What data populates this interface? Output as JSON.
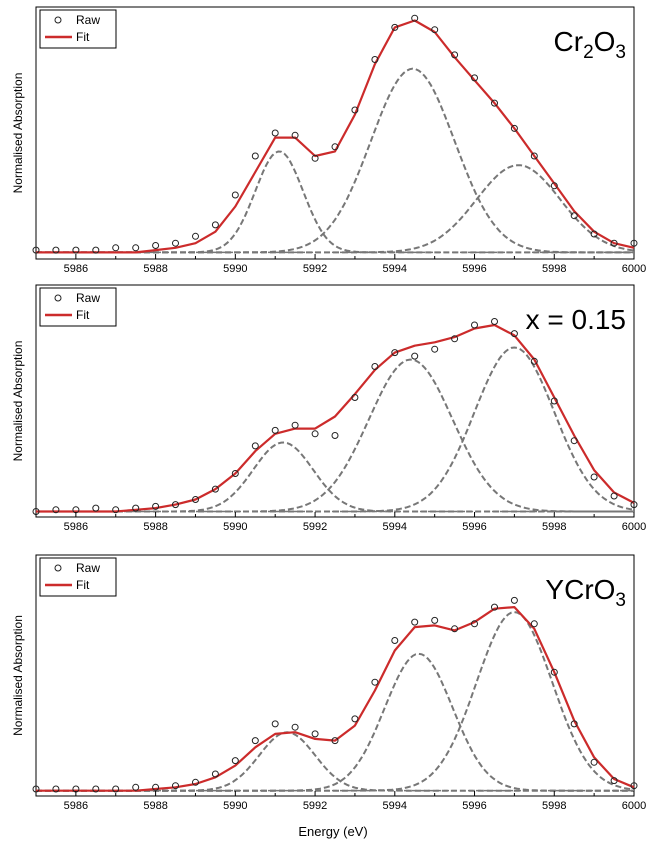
{
  "figure": {
    "xlabel": "Energy (eV)",
    "ylabel": "Normalised Absorption"
  },
  "colors": {
    "fit": "#cc2b2b",
    "raw": "#222222",
    "component": "#777777",
    "baseline": "#777777",
    "axis": "#000000"
  },
  "legend": {
    "raw": "Raw",
    "fit": "Fit"
  },
  "chart_data": [
    {
      "type": "line",
      "title": "Cr2O3",
      "title_main": "Cr",
      "title_sub1": "2",
      "title_mid": "O",
      "title_sub2": "3",
      "xlabel": "",
      "ylabel": "Normalised Absorption",
      "xlim": [
        5985,
        6000
      ],
      "ylim": [
        -0.02,
        1.06
      ],
      "xticks": [
        5986,
        5988,
        5990,
        5992,
        5994,
        5996,
        5998,
        6000
      ],
      "grid": false,
      "legend_position": "top-left",
      "components": [
        {
          "center": 5991.1,
          "amplitude": 0.44,
          "sigma": 0.6
        },
        {
          "center": 5994.45,
          "amplitude": 0.8,
          "sigma": 1.05
        },
        {
          "center": 5997.1,
          "amplitude": 0.38,
          "sigma": 1.05
        }
      ],
      "series": [
        {
          "name": "Raw",
          "x": [
            5985.0,
            5985.5,
            5986.0,
            5986.5,
            5987.0,
            5987.5,
            5988.0,
            5988.5,
            5989.0,
            5989.5,
            5990.0,
            5990.5,
            5991.0,
            5991.5,
            5992.0,
            5992.5,
            5993.0,
            5993.5,
            5994.0,
            5994.5,
            5995.0,
            5995.5,
            5996.0,
            5996.5,
            5997.0,
            5997.5,
            5998.0,
            5998.5,
            5999.0,
            5999.5,
            6000.0
          ],
          "y": [
            0.01,
            0.01,
            0.01,
            0.01,
            0.02,
            0.02,
            0.03,
            0.04,
            0.07,
            0.12,
            0.25,
            0.42,
            0.52,
            0.51,
            0.41,
            0.46,
            0.62,
            0.84,
            0.98,
            1.02,
            0.97,
            0.86,
            0.76,
            0.65,
            0.54,
            0.42,
            0.29,
            0.16,
            0.08,
            0.04,
            0.04
          ]
        },
        {
          "name": "Fit",
          "x": [
            5985.0,
            5985.5,
            5986.0,
            5986.5,
            5987.0,
            5987.5,
            5988.0,
            5988.5,
            5989.0,
            5989.5,
            5990.0,
            5990.5,
            5991.0,
            5991.5,
            5992.0,
            5992.5,
            5993.0,
            5993.5,
            5994.0,
            5994.5,
            5995.0,
            5995.5,
            5996.0,
            5996.5,
            5997.0,
            5997.5,
            5998.0,
            5998.5,
            5999.0,
            5999.5,
            6000.0
          ],
          "y": [
            0.0,
            0.0,
            0.0,
            0.0,
            0.0,
            0.0,
            0.01,
            0.02,
            0.04,
            0.09,
            0.2,
            0.35,
            0.5,
            0.5,
            0.42,
            0.44,
            0.6,
            0.82,
            0.98,
            1.01,
            0.96,
            0.85,
            0.75,
            0.65,
            0.54,
            0.42,
            0.3,
            0.18,
            0.09,
            0.04,
            0.02
          ]
        }
      ]
    },
    {
      "type": "line",
      "title": "x = 0.15",
      "xlabel": "",
      "ylabel": "Normalised Absorption",
      "xlim": [
        5985,
        6000
      ],
      "ylim": [
        -0.02,
        1.3
      ],
      "xticks": [
        5986,
        5988,
        5990,
        5992,
        5994,
        5996,
        5998,
        6000
      ],
      "grid": false,
      "legend_position": "top-left",
      "components": [
        {
          "center": 5991.2,
          "amplitude": 0.4,
          "sigma": 0.75
        },
        {
          "center": 5994.4,
          "amplitude": 0.88,
          "sigma": 1.05
        },
        {
          "center": 5997.0,
          "amplitude": 0.95,
          "sigma": 1.0
        }
      ],
      "series": [
        {
          "name": "Raw",
          "x": [
            5985.0,
            5985.5,
            5986.0,
            5986.5,
            5987.0,
            5987.5,
            5988.0,
            5988.5,
            5989.0,
            5989.5,
            5990.0,
            5990.5,
            5991.0,
            5991.5,
            5992.0,
            5992.5,
            5993.0,
            5993.5,
            5994.0,
            5994.5,
            5995.0,
            5995.5,
            5996.0,
            5996.5,
            5997.0,
            5997.5,
            5998.0,
            5998.5,
            5999.0,
            5999.5,
            6000.0
          ],
          "y": [
            0.0,
            0.01,
            0.01,
            0.02,
            0.01,
            0.02,
            0.03,
            0.04,
            0.07,
            0.13,
            0.22,
            0.38,
            0.47,
            0.5,
            0.45,
            0.44,
            0.66,
            0.84,
            0.92,
            0.9,
            0.94,
            1.0,
            1.08,
            1.1,
            1.03,
            0.87,
            0.64,
            0.41,
            0.2,
            0.09,
            0.04
          ]
        },
        {
          "name": "Fit",
          "x": [
            5985.0,
            5985.5,
            5986.0,
            5986.5,
            5987.0,
            5987.5,
            5988.0,
            5988.5,
            5989.0,
            5989.5,
            5990.0,
            5990.5,
            5991.0,
            5991.5,
            5992.0,
            5992.5,
            5993.0,
            5993.5,
            5994.0,
            5994.5,
            5995.0,
            5995.5,
            5996.0,
            5996.5,
            5997.0,
            5997.5,
            5998.0,
            5998.5,
            5999.0,
            5999.5,
            6000.0
          ],
          "y": [
            0.0,
            0.0,
            0.0,
            0.0,
            0.0,
            0.01,
            0.02,
            0.04,
            0.07,
            0.13,
            0.22,
            0.35,
            0.45,
            0.48,
            0.48,
            0.55,
            0.68,
            0.82,
            0.92,
            0.96,
            0.98,
            1.01,
            1.06,
            1.08,
            1.02,
            0.88,
            0.66,
            0.44,
            0.24,
            0.11,
            0.05
          ]
        }
      ]
    },
    {
      "type": "line",
      "title": "YCrO3",
      "title_main": "YCrO",
      "title_sub1": "3",
      "xlabel": "Energy (eV)",
      "ylabel": "Normalised Absorption",
      "xlim": [
        5985,
        6000
      ],
      "ylim": [
        -0.02,
        1.4
      ],
      "xticks": [
        5986,
        5988,
        5990,
        5992,
        5994,
        5996,
        5998,
        6000
      ],
      "grid": false,
      "legend_position": "top-left",
      "components": [
        {
          "center": 5991.3,
          "amplitude": 0.35,
          "sigma": 0.7
        },
        {
          "center": 5994.6,
          "amplitude": 0.82,
          "sigma": 0.85
        },
        {
          "center": 5997.0,
          "amplitude": 1.07,
          "sigma": 0.95
        }
      ],
      "series": [
        {
          "name": "Raw",
          "x": [
            5985.0,
            5985.5,
            5986.0,
            5986.5,
            5987.0,
            5987.5,
            5988.0,
            5988.5,
            5989.0,
            5989.5,
            5990.0,
            5990.5,
            5991.0,
            5991.5,
            5992.0,
            5992.5,
            5993.0,
            5993.5,
            5994.0,
            5994.5,
            5995.0,
            5995.5,
            5996.0,
            5996.5,
            5997.0,
            5997.5,
            5998.0,
            5998.5,
            5999.0,
            5999.5,
            6000.0
          ],
          "y": [
            0.01,
            0.01,
            0.01,
            0.01,
            0.01,
            0.02,
            0.02,
            0.03,
            0.05,
            0.1,
            0.18,
            0.3,
            0.4,
            0.38,
            0.34,
            0.3,
            0.43,
            0.65,
            0.9,
            1.01,
            1.02,
            0.97,
            1.0,
            1.1,
            1.14,
            1.0,
            0.71,
            0.4,
            0.17,
            0.06,
            0.03
          ]
        },
        {
          "name": "Fit",
          "x": [
            5985.0,
            5985.5,
            5986.0,
            5986.5,
            5987.0,
            5987.5,
            5988.0,
            5988.5,
            5989.0,
            5989.5,
            5990.0,
            5990.5,
            5991.0,
            5991.5,
            5992.0,
            5992.5,
            5993.0,
            5993.5,
            5994.0,
            5994.5,
            5995.0,
            5995.5,
            5996.0,
            5996.5,
            5997.0,
            5997.5,
            5998.0,
            5998.5,
            5999.0,
            5999.5,
            6000.0
          ],
          "y": [
            0.0,
            0.0,
            0.0,
            0.0,
            0.0,
            0.0,
            0.01,
            0.02,
            0.04,
            0.08,
            0.15,
            0.26,
            0.34,
            0.35,
            0.31,
            0.3,
            0.39,
            0.6,
            0.84,
            0.98,
            0.99,
            0.96,
            1.01,
            1.09,
            1.1,
            0.97,
            0.71,
            0.42,
            0.2,
            0.07,
            0.02
          ]
        }
      ]
    }
  ]
}
